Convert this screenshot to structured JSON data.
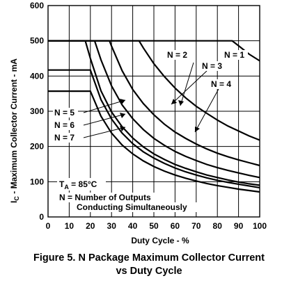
{
  "chart_data": {
    "type": "line",
    "xlabel": "Duty Cycle -  %",
    "ylabel_main": "I",
    "ylabel_sub": "C",
    "ylabel_rest": " - Maximum Collector Current - mA",
    "xlim": [
      0,
      100
    ],
    "ylim": [
      0,
      600
    ],
    "x_ticks": [
      0,
      10,
      20,
      30,
      40,
      50,
      60,
      70,
      80,
      90,
      100
    ],
    "y_ticks": [
      0,
      100,
      200,
      300,
      400,
      500,
      600
    ],
    "grid": true,
    "series": [
      {
        "name": "N = 1",
        "x": [
          0,
          87,
          90,
          95,
          100
        ],
        "y": [
          500,
          500,
          486,
          462,
          443
        ]
      },
      {
        "name": "N = 2",
        "x": [
          0,
          43,
          45,
          50,
          55,
          60,
          65,
          70,
          75,
          80,
          85,
          90,
          95,
          100
        ],
        "y": [
          500,
          500,
          480,
          435,
          398,
          366,
          338,
          314,
          294,
          275,
          258,
          244,
          230,
          218
        ]
      },
      {
        "name": "N = 3",
        "x": [
          0,
          29,
          30,
          35,
          40,
          45,
          50,
          55,
          60,
          65,
          70,
          75,
          80,
          85,
          90,
          95,
          100
        ],
        "y": [
          500,
          500,
          485,
          415,
          362,
          322,
          290,
          263,
          241,
          223,
          207,
          193,
          181,
          171,
          162,
          154,
          146
        ]
      },
      {
        "name": "N = 4",
        "x": [
          0,
          22,
          25,
          30,
          35,
          40,
          45,
          50,
          55,
          60,
          65,
          70,
          75,
          80,
          85,
          90,
          95,
          100
        ],
        "y": [
          500,
          500,
          446,
          372,
          318,
          279,
          248,
          223,
          203,
          186,
          172,
          160,
          149,
          140,
          132,
          125,
          118,
          112
        ]
      },
      {
        "name": "N = 5",
        "x": [
          0,
          17.6,
          20,
          25,
          30,
          35,
          40,
          45,
          50,
          55,
          60,
          65,
          70,
          75,
          80,
          85,
          90,
          95,
          100
        ],
        "y": [
          500,
          500,
          450,
          358,
          298,
          256,
          224,
          199,
          179,
          163,
          149,
          138,
          128,
          119,
          112,
          105,
          99,
          94,
          90
        ]
      },
      {
        "name": "N = 6",
        "x": [
          0,
          20,
          25,
          30,
          35,
          40,
          45,
          50,
          55,
          60,
          65,
          70,
          75,
          80,
          85,
          90,
          95,
          100
        ],
        "y": [
          417,
          417,
          333,
          278,
          238,
          208,
          185,
          167,
          152,
          139,
          128,
          119,
          111,
          104,
          98,
          93,
          88,
          83
        ]
      },
      {
        "name": "N = 7",
        "x": [
          0,
          20,
          25,
          30,
          35,
          40,
          45,
          50,
          55,
          60,
          65,
          70,
          75,
          80,
          85,
          90,
          95,
          100
        ],
        "y": [
          357,
          357,
          286,
          238,
          204,
          179,
          159,
          143,
          130,
          119,
          110,
          102,
          95,
          89,
          84,
          79,
          75,
          71
        ]
      }
    ],
    "annotations": {
      "temp_prefix": "T",
      "temp_sub": "A",
      "temp_value": " = 85°C",
      "legend_line1": "N = Number of Outputs",
      "legend_line2": "Conducting Simultaneously"
    }
  },
  "caption": {
    "line1": "Figure 5. N Package Maximum Collector Current",
    "line2": "vs Duty Cycle"
  }
}
